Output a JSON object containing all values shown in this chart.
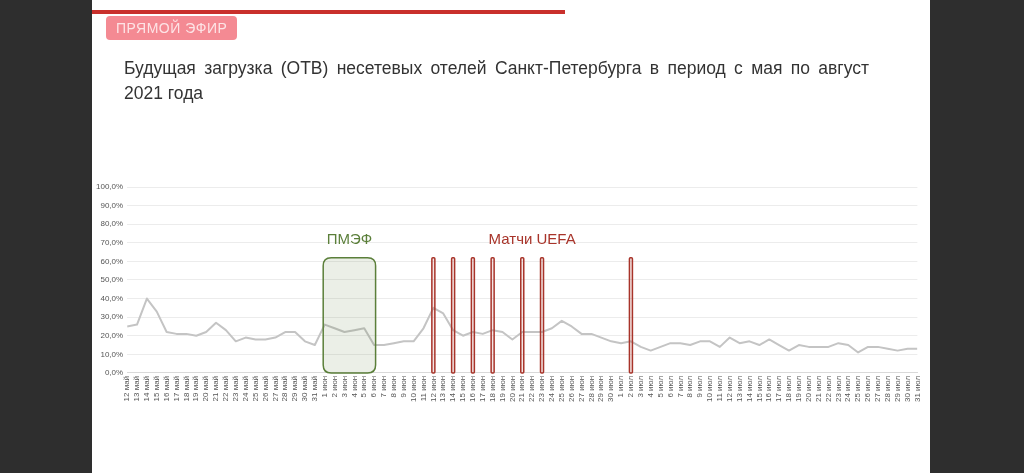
{
  "chart_data": {
    "type": "line",
    "title": "Будущая загрузка (ОТВ) несетевых отелей Санкт-Петербурга в период с мая по август 2021 года",
    "annotations": [
      "ПРЯМОЙ ЭФИР",
      "Матчи UEFA"
    ],
    "x": [
      "--05-12",
      "--05-13",
      "--05-14",
      "--05-15",
      "--05-16",
      "--05-17",
      "--05-18",
      "--05-19",
      "--05-20",
      "--05-21",
      "--05-22",
      "--05-23",
      "--05-24",
      "--05-25",
      "--05-26",
      "--05-27",
      "--05-28",
      "--05-29",
      "--05-30",
      "--05-31",
      "--06-01",
      "--06-02",
      "--06-03",
      "--06-04",
      "--06-05",
      "--06-06",
      "--06-07",
      "--06-08",
      "--06-09",
      "--06-10",
      "--06-11",
      "--06-12",
      "--06-13",
      "--06-14",
      "--06-15",
      "--06-16",
      "--06-17",
      "--06-18",
      "--06-19",
      "--06-20",
      "--06-21",
      "--06-22",
      "--06-23",
      "--06-24",
      "--06-25",
      "--06-26",
      "--06-27",
      "--06-28",
      "--06-29",
      "--06-30",
      "--07-01",
      "--07-02",
      "--07-03",
      "--07-04",
      "--07-05",
      "--07-06",
      "--07-07",
      "--07-08",
      "--07-09",
      "--07-10",
      "--07-11",
      "--07-12",
      "--07-13",
      "--07-14",
      "--07-15",
      "--07-16",
      "--07-17",
      "--07-18",
      "--07-19",
      "--07-20",
      "--07-21",
      "--07-22",
      "--07-23",
      "--07-24",
      "--07-25",
      "--07-26",
      "--07-27",
      "--07-28",
      "--07-29",
      "--07-30",
      "--07-31"
    ],
    "series": [
      {
        "color": "#c4c4c4",
        "values": [
          25,
          26,
          40,
          33,
          22,
          21,
          21,
          20,
          22,
          27,
          23,
          17,
          19,
          18,
          18,
          19,
          22,
          22,
          17,
          15,
          26,
          24,
          22,
          23,
          24,
          15,
          15,
          16,
          17,
          17,
          24,
          35,
          32,
          23,
          20,
          22,
          21,
          23,
          22,
          18,
          22,
          22,
          22,
          24,
          28,
          25,
          21,
          21,
          19,
          17,
          16,
          17,
          14,
          12,
          14,
          16,
          16,
          15,
          17,
          17,
          14,
          19,
          16,
          17,
          15,
          18,
          15,
          12,
          15,
          14,
          14,
          14,
          16,
          15,
          11,
          14,
          14,
          13,
          12,
          13,
          13
        ]
      }
    ],
    "xlim": [
      "--05-12",
      "--07-31"
    ],
    "xticks": [
      {
        "value": "--05-12",
        "label": "12 май"
      },
      {
        "value": "--05-13",
        "label": "13 май"
      },
      {
        "value": "--05-14",
        "label": "14 май"
      },
      {
        "value": "--05-15",
        "label": "15 май"
      },
      {
        "value": "--05-16",
        "label": "16 май"
      },
      {
        "value": "--05-17",
        "label": "17 май"
      },
      {
        "value": "--05-18",
        "label": "18 май"
      },
      {
        "value": "--05-19",
        "label": "19 май"
      },
      {
        "value": "--05-20",
        "label": "20 май"
      },
      {
        "value": "--05-21",
        "label": "21 май"
      },
      {
        "value": "--05-22",
        "label": "22 май"
      },
      {
        "value": "--05-23",
        "label": "23 май"
      },
      {
        "value": "--05-24",
        "label": "24 май"
      },
      {
        "value": "--05-25",
        "label": "25 май"
      },
      {
        "value": "--05-26",
        "label": "26 май"
      },
      {
        "value": "--05-27",
        "label": "27 май"
      },
      {
        "value": "--05-28",
        "label": "28 май"
      },
      {
        "value": "--05-29",
        "label": "29 май"
      },
      {
        "value": "--05-30",
        "label": "30 май"
      },
      {
        "value": "--05-31",
        "label": "31 май"
      },
      {
        "value": "--06-01",
        "label": "1 июн"
      },
      {
        "value": "--06-02",
        "label": "2 июн"
      },
      {
        "value": "--06-03",
        "label": "3 июн"
      },
      {
        "value": "--06-04",
        "label": "4 июн"
      },
      {
        "value": "--06-05",
        "label": "5 июн"
      },
      {
        "value": "--06-06",
        "label": "6 июн"
      },
      {
        "value": "--06-07",
        "label": "7 июн"
      },
      {
        "value": "--06-08",
        "label": "8 июн"
      },
      {
        "value": "--06-09",
        "label": "9 июн"
      },
      {
        "value": "--06-10",
        "label": "10 июн"
      },
      {
        "value": "--06-11",
        "label": "11 июн"
      },
      {
        "value": "--06-12",
        "label": "12 июн"
      },
      {
        "value": "--06-13",
        "label": "13 июн"
      },
      {
        "value": "--06-14",
        "label": "14 июн"
      },
      {
        "value": "--06-15",
        "label": "15 июн"
      },
      {
        "value": "--06-16",
        "label": "16 июн"
      },
      {
        "value": "--06-17",
        "label": "17 июн"
      },
      {
        "value": "--06-18",
        "label": "18 июн"
      },
      {
        "value": "--06-19",
        "label": "19 июн"
      },
      {
        "value": "--06-20",
        "label": "20 июн"
      },
      {
        "value": "--06-21",
        "label": "21 июн"
      },
      {
        "value": "--06-22",
        "label": "22 июн"
      },
      {
        "value": "--06-23",
        "label": "23 июн"
      },
      {
        "value": "--06-24",
        "label": "24 июн"
      },
      {
        "value": "--06-25",
        "label": "25 июн"
      },
      {
        "value": "--06-26",
        "label": "26 июн"
      },
      {
        "value": "--06-27",
        "label": "27 июн"
      },
      {
        "value": "--06-28",
        "label": "28 июн"
      },
      {
        "value": "--06-29",
        "label": "29 июн"
      },
      {
        "value": "--06-30",
        "label": "30 июн"
      },
      {
        "value": "--07-01",
        "label": "1 июл"
      },
      {
        "value": "--07-02",
        "label": "2 июл"
      },
      {
        "value": "--07-03",
        "label": "3 июл"
      },
      {
        "value": "--07-04",
        "label": "4 июл"
      },
      {
        "value": "--07-05",
        "label": "5 июл"
      },
      {
        "value": "--07-06",
        "label": "6 июл"
      },
      {
        "value": "--07-07",
        "label": "7 июл"
      },
      {
        "value": "--07-08",
        "label": "8 июл"
      },
      {
        "value": "--07-09",
        "label": "9 июл"
      },
      {
        "value": "--07-10",
        "label": "10 июл"
      },
      {
        "value": "--07-11",
        "label": "11 июл"
      },
      {
        "value": "--07-12",
        "label": "12 июл"
      },
      {
        "value": "--07-13",
        "label": "13 июл"
      },
      {
        "value": "--07-14",
        "label": "14 июл"
      },
      {
        "value": "--07-15",
        "label": "15 июл"
      },
      {
        "value": "--07-16",
        "label": "16 июл"
      },
      {
        "value": "--07-17",
        "label": "17 июл"
      },
      {
        "value": "--07-18",
        "label": "18 июл"
      },
      {
        "value": "--07-19",
        "label": "19 июл"
      },
      {
        "value": "--07-20",
        "label": "20 июл"
      },
      {
        "value": "--07-21",
        "label": "21 июл"
      },
      {
        "value": "--07-22",
        "label": "22 июл"
      },
      {
        "value": "--07-23",
        "label": "23 июл"
      },
      {
        "value": "--07-24",
        "label": "24 июл"
      },
      {
        "value": "--07-25",
        "label": "25 июл"
      },
      {
        "value": "--07-26",
        "label": "26 июл"
      },
      {
        "value": "--07-27",
        "label": "27 июл"
      },
      {
        "value": "--07-28",
        "label": "28 июл"
      },
      {
        "value": "--07-29",
        "label": "29 июл"
      },
      {
        "value": "--07-30",
        "label": "30 июл"
      },
      {
        "value": "--07-31",
        "label": "31 июл"
      }
    ],
    "ylim": [
      0,
      100
    ],
    "yticks": [
      {
        "value": 0,
        "label": "0,0%"
      },
      {
        "value": 10,
        "label": "10,0%"
      },
      {
        "value": 20,
        "label": "20,0%"
      },
      {
        "value": 30,
        "label": "30,0%"
      },
      {
        "value": 40,
        "label": "40,0%"
      },
      {
        "value": 50,
        "label": "50,0%"
      },
      {
        "value": 60,
        "label": "60,0%"
      },
      {
        "value": 70,
        "label": "70,0%"
      },
      {
        "value": 80,
        "label": "80,0%"
      },
      {
        "value": 90,
        "label": "90,0%"
      },
      {
        "value": 100,
        "label": "100,0%"
      }
    ],
    "grid": "y",
    "legend": false,
    "marker": "none",
    "line_style": "solid",
    "bands": [
      {
        "axis": "x",
        "from": "--06-01",
        "to": "--06-06",
        "label": "ПМЭФ",
        "color": "#5b7f3a"
      },
      {
        "axis": "x",
        "from": "--06-12",
        "to": "--06-12",
        "color": "#a8342a"
      },
      {
        "axis": "x",
        "from": "--06-14",
        "to": "--06-14",
        "color": "#a8342a"
      },
      {
        "axis": "x",
        "from": "--06-16",
        "to": "--06-16",
        "color": "#a8342a"
      },
      {
        "axis": "x",
        "from": "--06-18",
        "to": "--06-18",
        "color": "#a8342a"
      },
      {
        "axis": "x",
        "from": "--06-21",
        "to": "--06-21",
        "color": "#a8342a"
      },
      {
        "axis": "x",
        "from": "--06-23",
        "to": "--06-23",
        "color": "#a8342a"
      },
      {
        "axis": "x",
        "from": "--07-02",
        "to": "--07-02",
        "color": "#a8342a"
      }
    ]
  }
}
